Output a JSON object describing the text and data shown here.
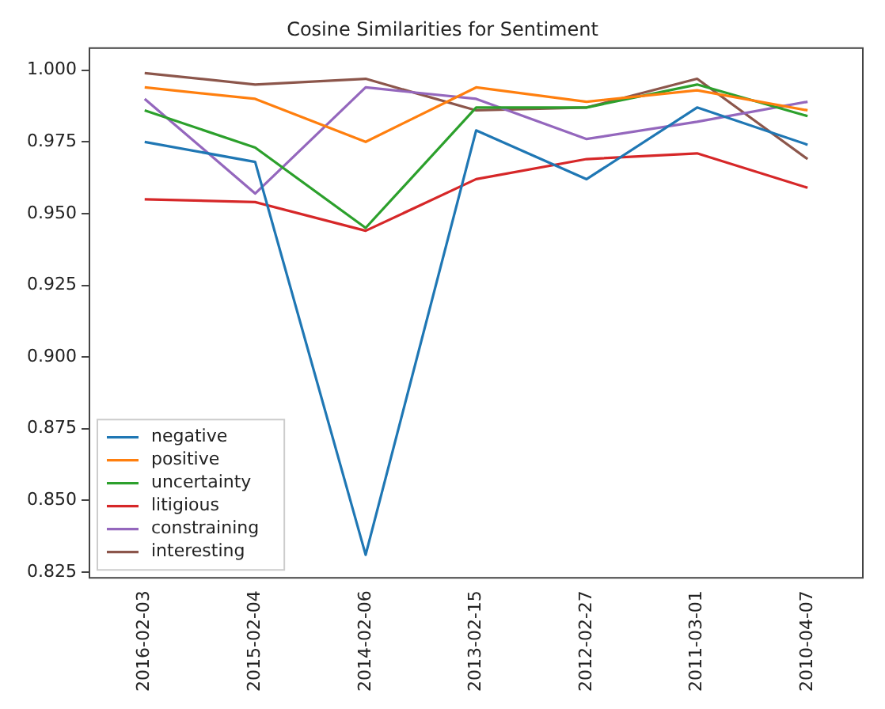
{
  "chart_data": {
    "type": "line",
    "title": "Cosine Similarities for Sentiment",
    "categories": [
      "2016-02-03",
      "2015-02-04",
      "2014-02-06",
      "2013-02-15",
      "2012-02-27",
      "2011-03-01",
      "2010-04-07"
    ],
    "series": [
      {
        "name": "negative",
        "color": "#1f77b4",
        "values": [
          0.975,
          0.968,
          0.831,
          0.979,
          0.962,
          0.987,
          0.974
        ]
      },
      {
        "name": "positive",
        "color": "#ff7f0e",
        "values": [
          0.994,
          0.99,
          0.975,
          0.994,
          0.989,
          0.993,
          0.986
        ]
      },
      {
        "name": "uncertainty",
        "color": "#2ca02c",
        "values": [
          0.986,
          0.973,
          0.945,
          0.987,
          0.987,
          0.995,
          0.984
        ]
      },
      {
        "name": "litigious",
        "color": "#d62728",
        "values": [
          0.955,
          0.954,
          0.944,
          0.962,
          0.969,
          0.971,
          0.959
        ]
      },
      {
        "name": "constraining",
        "color": "#9467bd",
        "values": [
          0.99,
          0.957,
          0.994,
          0.99,
          0.976,
          0.982,
          0.989
        ]
      },
      {
        "name": "interesting",
        "color": "#8c564b",
        "values": [
          0.999,
          0.995,
          0.997,
          0.986,
          0.987,
          0.997,
          0.969
        ]
      }
    ],
    "ylim": [
      0.823,
      1.0077
    ],
    "yticks": [
      {
        "value": 0.825,
        "label": "0.825"
      },
      {
        "value": 0.85,
        "label": "0.850"
      },
      {
        "value": 0.875,
        "label": "0.875"
      },
      {
        "value": 0.9,
        "label": "0.900"
      },
      {
        "value": 0.925,
        "label": "0.925"
      },
      {
        "value": 0.95,
        "label": "0.950"
      },
      {
        "value": 0.975,
        "label": "0.975"
      },
      {
        "value": 1,
        "label": "1.000"
      }
    ],
    "grid": false,
    "legend": "bottom left"
  }
}
